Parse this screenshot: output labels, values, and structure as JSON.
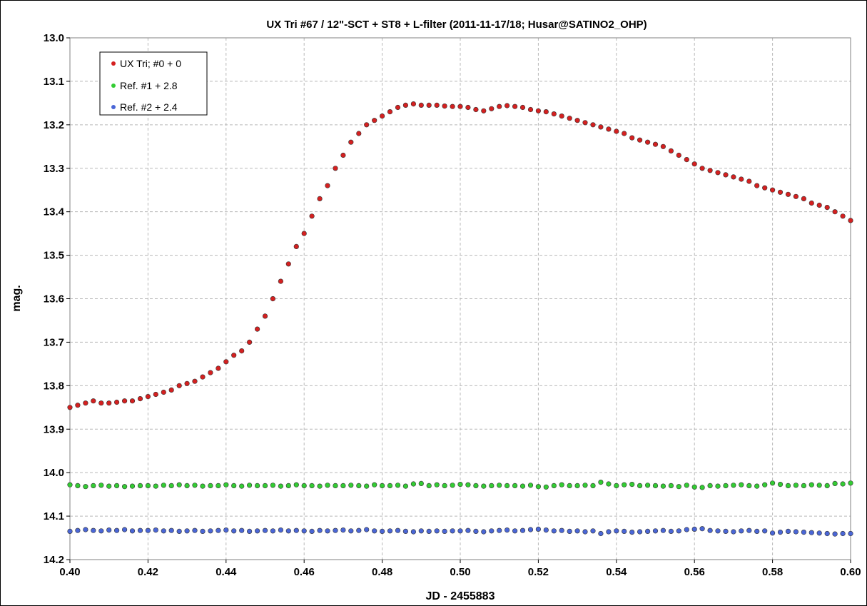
{
  "chart_data": {
    "type": "scatter",
    "title": "UX Tri #67 / 12\"-SCT + ST8 + L-filter (2011-11-17/18; Husar@SATINO2_OHP)",
    "xlabel": "JD - 2455883",
    "ylabel": "mag.",
    "xlim": [
      0.4,
      0.6
    ],
    "ylim": [
      13.0,
      14.2
    ],
    "y_inverted": true,
    "grid": true,
    "legend_position": "top-left",
    "x_ticks": [
      "0.40",
      "0.42",
      "0.44",
      "0.46",
      "0.48",
      "0.50",
      "0.52",
      "0.54",
      "0.56",
      "0.58",
      "0.60"
    ],
    "y_ticks": [
      "13.0",
      "13.1",
      "13.2",
      "13.3",
      "13.4",
      "13.5",
      "13.6",
      "13.7",
      "13.8",
      "13.9",
      "14.0",
      "14.1",
      "14.2"
    ],
    "series": [
      {
        "name": "UX Tri; #0 + 0",
        "color": "#d42020",
        "x": [
          0.4,
          0.402,
          0.404,
          0.406,
          0.408,
          0.41,
          0.412,
          0.414,
          0.416,
          0.418,
          0.42,
          0.422,
          0.424,
          0.426,
          0.428,
          0.43,
          0.432,
          0.434,
          0.436,
          0.438,
          0.44,
          0.442,
          0.444,
          0.446,
          0.448,
          0.45,
          0.452,
          0.454,
          0.456,
          0.458,
          0.46,
          0.462,
          0.464,
          0.466,
          0.468,
          0.47,
          0.472,
          0.474,
          0.476,
          0.478,
          0.48,
          0.482,
          0.484,
          0.486,
          0.488,
          0.49,
          0.492,
          0.494,
          0.496,
          0.498,
          0.5,
          0.502,
          0.504,
          0.506,
          0.508,
          0.51,
          0.512,
          0.514,
          0.516,
          0.518,
          0.52,
          0.522,
          0.524,
          0.526,
          0.528,
          0.53,
          0.532,
          0.534,
          0.536,
          0.538,
          0.54,
          0.542,
          0.544,
          0.546,
          0.548,
          0.55,
          0.552,
          0.554,
          0.556,
          0.558,
          0.56,
          0.562,
          0.564,
          0.566,
          0.568,
          0.57,
          0.572,
          0.574,
          0.576,
          0.578,
          0.58,
          0.582,
          0.584,
          0.586,
          0.588,
          0.59,
          0.592,
          0.594,
          0.596,
          0.598,
          0.6
        ],
        "y": [
          13.85,
          13.845,
          13.84,
          13.835,
          13.84,
          13.84,
          13.838,
          13.835,
          13.835,
          13.83,
          13.825,
          13.82,
          13.815,
          13.81,
          13.8,
          13.795,
          13.79,
          13.78,
          13.77,
          13.76,
          13.745,
          13.73,
          13.72,
          13.7,
          13.67,
          13.64,
          13.6,
          13.56,
          13.52,
          13.48,
          13.45,
          13.41,
          13.37,
          13.34,
          13.3,
          13.27,
          13.24,
          13.22,
          13.2,
          13.19,
          13.18,
          13.17,
          13.16,
          13.155,
          13.152,
          13.155,
          13.155,
          13.155,
          13.157,
          13.158,
          13.158,
          13.16,
          13.165,
          13.168,
          13.163,
          13.158,
          13.156,
          13.158,
          13.16,
          13.165,
          13.168,
          13.17,
          13.175,
          13.18,
          13.185,
          13.19,
          13.195,
          13.2,
          13.205,
          13.21,
          13.215,
          13.22,
          13.23,
          13.235,
          13.24,
          13.245,
          13.25,
          13.26,
          13.27,
          13.28,
          13.29,
          13.3,
          13.305,
          13.31,
          13.315,
          13.32,
          13.325,
          13.33,
          13.34,
          13.345,
          13.35,
          13.355,
          13.36,
          13.365,
          13.37,
          13.38,
          13.385,
          13.39,
          13.4,
          13.41,
          13.42
        ]
      },
      {
        "name": "Ref. #1 + 2.8",
        "color": "#33cc33",
        "x": [
          0.4,
          0.402,
          0.404,
          0.406,
          0.408,
          0.41,
          0.412,
          0.414,
          0.416,
          0.418,
          0.42,
          0.422,
          0.424,
          0.426,
          0.428,
          0.43,
          0.432,
          0.434,
          0.436,
          0.438,
          0.44,
          0.442,
          0.444,
          0.446,
          0.448,
          0.45,
          0.452,
          0.454,
          0.456,
          0.458,
          0.46,
          0.462,
          0.464,
          0.466,
          0.468,
          0.47,
          0.472,
          0.474,
          0.476,
          0.478,
          0.48,
          0.482,
          0.484,
          0.486,
          0.488,
          0.49,
          0.492,
          0.494,
          0.496,
          0.498,
          0.5,
          0.502,
          0.504,
          0.506,
          0.508,
          0.51,
          0.512,
          0.514,
          0.516,
          0.518,
          0.52,
          0.522,
          0.524,
          0.526,
          0.528,
          0.53,
          0.532,
          0.534,
          0.536,
          0.538,
          0.54,
          0.542,
          0.544,
          0.546,
          0.548,
          0.55,
          0.552,
          0.554,
          0.556,
          0.558,
          0.56,
          0.562,
          0.564,
          0.566,
          0.568,
          0.57,
          0.572,
          0.574,
          0.576,
          0.578,
          0.58,
          0.582,
          0.584,
          0.586,
          0.588,
          0.59,
          0.592,
          0.594,
          0.596,
          0.598,
          0.6
        ],
        "y": [
          14.028,
          14.03,
          14.032,
          14.03,
          14.029,
          14.031,
          14.03,
          14.032,
          14.031,
          14.03,
          14.03,
          14.031,
          14.029,
          14.03,
          14.028,
          14.03,
          14.029,
          14.031,
          14.03,
          14.03,
          14.028,
          14.03,
          14.031,
          14.029,
          14.03,
          14.03,
          14.029,
          14.031,
          14.03,
          14.028,
          14.03,
          14.03,
          14.031,
          14.029,
          14.03,
          14.03,
          14.029,
          14.03,
          14.031,
          14.028,
          14.03,
          14.03,
          14.029,
          14.031,
          14.026,
          14.025,
          14.03,
          14.028,
          14.03,
          14.029,
          14.027,
          14.028,
          14.03,
          14.031,
          14.03,
          14.029,
          14.03,
          14.03,
          14.031,
          14.029,
          14.032,
          14.033,
          14.03,
          14.028,
          14.03,
          14.03,
          14.029,
          14.03,
          14.022,
          14.026,
          14.03,
          14.028,
          14.027,
          14.03,
          14.029,
          14.03,
          14.031,
          14.03,
          14.032,
          14.029,
          14.033,
          14.034,
          14.03,
          14.031,
          14.03,
          14.029,
          14.028,
          14.03,
          14.031,
          14.028,
          14.024,
          14.027,
          14.03,
          14.029,
          14.03,
          14.028,
          14.029,
          14.03,
          14.025,
          14.026,
          14.024
        ]
      },
      {
        "name": "Ref. #2 + 2.4",
        "color": "#4a66d6",
        "x": [
          0.4,
          0.402,
          0.404,
          0.406,
          0.408,
          0.41,
          0.412,
          0.414,
          0.416,
          0.418,
          0.42,
          0.422,
          0.424,
          0.426,
          0.428,
          0.43,
          0.432,
          0.434,
          0.436,
          0.438,
          0.44,
          0.442,
          0.444,
          0.446,
          0.448,
          0.45,
          0.452,
          0.454,
          0.456,
          0.458,
          0.46,
          0.462,
          0.464,
          0.466,
          0.468,
          0.47,
          0.472,
          0.474,
          0.476,
          0.478,
          0.48,
          0.482,
          0.484,
          0.486,
          0.488,
          0.49,
          0.492,
          0.494,
          0.496,
          0.498,
          0.5,
          0.502,
          0.504,
          0.506,
          0.508,
          0.51,
          0.512,
          0.514,
          0.516,
          0.518,
          0.52,
          0.522,
          0.524,
          0.526,
          0.528,
          0.53,
          0.532,
          0.534,
          0.536,
          0.538,
          0.54,
          0.542,
          0.544,
          0.546,
          0.548,
          0.55,
          0.552,
          0.554,
          0.556,
          0.558,
          0.56,
          0.562,
          0.564,
          0.566,
          0.568,
          0.57,
          0.572,
          0.574,
          0.576,
          0.578,
          0.58,
          0.582,
          0.584,
          0.586,
          0.588,
          0.59,
          0.592,
          0.594,
          0.596,
          0.598,
          0.6
        ],
        "y": [
          14.135,
          14.133,
          14.131,
          14.133,
          14.134,
          14.132,
          14.133,
          14.131,
          14.134,
          14.133,
          14.133,
          14.132,
          14.134,
          14.133,
          14.135,
          14.134,
          14.133,
          14.135,
          14.134,
          14.133,
          14.132,
          14.134,
          14.133,
          14.135,
          14.134,
          14.133,
          14.134,
          14.132,
          14.134,
          14.133,
          14.134,
          14.135,
          14.133,
          14.134,
          14.133,
          14.132,
          14.134,
          14.133,
          14.131,
          14.134,
          14.135,
          14.134,
          14.133,
          14.135,
          14.136,
          14.134,
          14.135,
          14.134,
          14.135,
          14.134,
          14.134,
          14.133,
          14.135,
          14.136,
          14.134,
          14.133,
          14.132,
          14.134,
          14.133,
          14.131,
          14.13,
          14.132,
          14.134,
          14.133,
          14.135,
          14.134,
          14.136,
          14.134,
          14.14,
          14.136,
          14.134,
          14.135,
          14.137,
          14.136,
          14.135,
          14.134,
          14.133,
          14.135,
          14.134,
          14.131,
          14.13,
          14.129,
          14.133,
          14.134,
          14.135,
          14.136,
          14.134,
          14.133,
          14.135,
          14.134,
          14.139,
          14.137,
          14.135,
          14.136,
          14.137,
          14.138,
          14.139,
          14.14,
          14.141,
          14.14,
          14.14
        ]
      }
    ]
  }
}
